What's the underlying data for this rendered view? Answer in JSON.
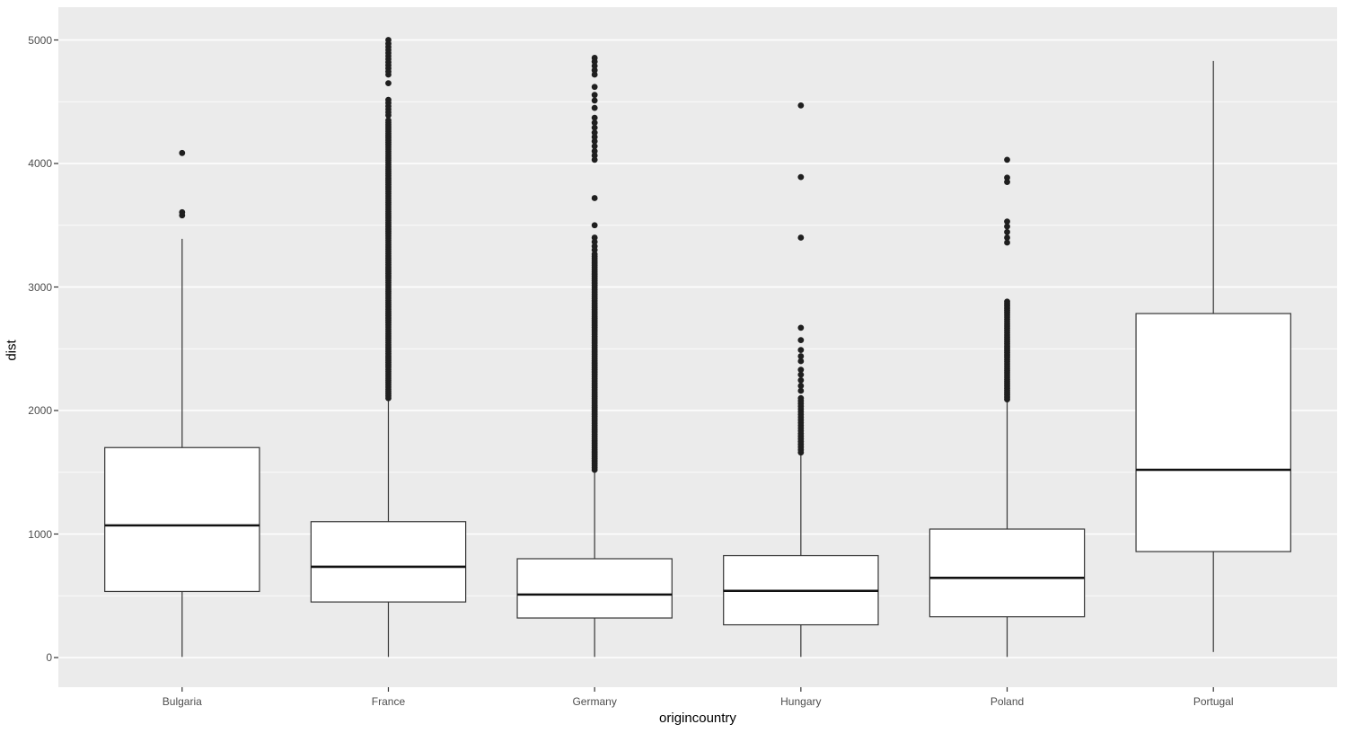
{
  "figure": {
    "background": "#FFFFFF",
    "panel_background": "#EBEBEB",
    "gridline_color": "#FFFFFF",
    "box_fill": "#FFFFFF",
    "box_stroke": "#353535",
    "median_color": "#111111",
    "outlier_color": "#1F1F1F",
    "tick_mark_color": "#333333",
    "axis_text_color": "#4D4D4D",
    "axis_title_color": "#000000"
  },
  "chart_data": {
    "type": "boxplot",
    "title": "",
    "xlabel": "origincountry",
    "ylabel": "dist",
    "ylim": [
      0,
      5000
    ],
    "yticks": [
      0,
      1000,
      2000,
      3000,
      4000,
      5000
    ],
    "minor_gridlines": [
      500,
      1500,
      2500,
      3500,
      4500
    ],
    "grid": "on",
    "legend": "none",
    "categories": [
      "Bulgaria",
      "France",
      "Germany",
      "Hungary",
      "Poland",
      "Portugal"
    ],
    "series": [
      {
        "category": "Bulgaria",
        "whisker_low": 5,
        "q1": 535,
        "median": 1070,
        "q3": 1700,
        "whisker_high": 3390,
        "outliers": [
          3580,
          3605,
          4085
        ],
        "outlier_dense_ranges": []
      },
      {
        "category": "France",
        "whisker_low": 5,
        "q1": 450,
        "median": 735,
        "q3": 1100,
        "whisker_high": 2085,
        "outliers": [
          4390,
          4415,
          4440,
          4465,
          4490,
          4515,
          4650,
          4720,
          4745,
          4770,
          4795,
          4820,
          4845,
          4870,
          4895,
          4920,
          4945,
          4970,
          5000
        ],
        "outlier_dense_ranges": [
          {
            "min": 2100,
            "max": 4360,
            "spacing": 18
          }
        ]
      },
      {
        "category": "Germany",
        "whisker_low": 5,
        "q1": 320,
        "median": 510,
        "q3": 800,
        "whisker_high": 1500,
        "outliers": [
          3300,
          3330,
          3365,
          3400,
          3500,
          3720,
          4030,
          4065,
          4100,
          4140,
          4180,
          4215,
          4250,
          4290,
          4330,
          4370,
          4450,
          4510,
          4555,
          4620,
          4720,
          4755,
          4790,
          4825,
          4855
        ],
        "outlier_dense_ranges": [
          {
            "min": 1520,
            "max": 3270,
            "spacing": 18
          }
        ]
      },
      {
        "category": "Hungary",
        "whisker_low": 5,
        "q1": 265,
        "median": 540,
        "q3": 825,
        "whisker_high": 1645,
        "outliers": [
          2160,
          2200,
          2245,
          2290,
          2330,
          2400,
          2440,
          2490,
          2570,
          2670,
          3400,
          3890,
          4470
        ],
        "outlier_dense_ranges": [
          {
            "min": 1660,
            "max": 2120,
            "spacing": 22
          }
        ]
      },
      {
        "category": "Poland",
        "whisker_low": 5,
        "q1": 330,
        "median": 645,
        "q3": 1040,
        "whisker_high": 2070,
        "outliers": [
          3360,
          3400,
          3445,
          3490,
          3530,
          3850,
          3885,
          4030
        ],
        "outlier_dense_ranges": [
          {
            "min": 2090,
            "max": 2890,
            "spacing": 18
          }
        ]
      },
      {
        "category": "Portugal",
        "whisker_low": 45,
        "q1": 858,
        "median": 1520,
        "q3": 2785,
        "whisker_high": 4830,
        "outliers": [],
        "outlier_dense_ranges": []
      }
    ]
  }
}
